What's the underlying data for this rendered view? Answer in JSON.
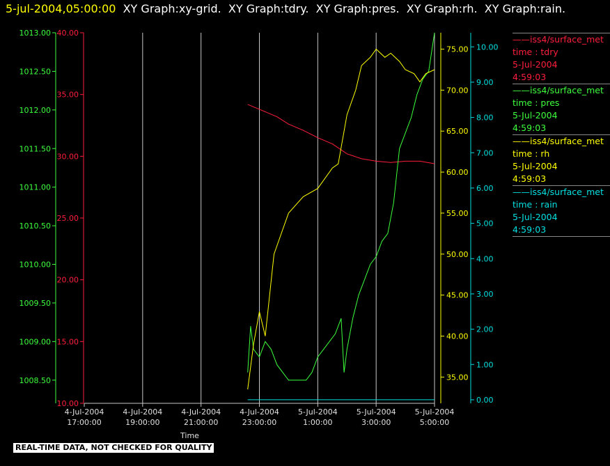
{
  "header": {
    "timestamp": "5-jul-2004,05:00:00",
    "graphs": [
      "XY Graph:xy-grid.",
      "XY Graph:tdry.",
      "XY Graph:pres.",
      "XY Graph:rh.",
      "XY Graph:rain."
    ]
  },
  "legend": [
    {
      "source": "iss4/surface_met",
      "field": "time : tdry",
      "date": "5-Jul-2004",
      "time": "4:59:03",
      "color": "#ff1e3c"
    },
    {
      "source": "iss4/surface_met",
      "field": "time : pres",
      "date": "5-Jul-2004",
      "time": "4:59:03",
      "color": "#3cff3c"
    },
    {
      "source": "iss4/surface_met",
      "field": "time : rh",
      "date": "5-Jul-2004",
      "time": "4:59:03",
      "color": "#ffff00"
    },
    {
      "source": "iss4/surface_met",
      "field": "time : rain",
      "date": "5-Jul-2004",
      "time": "4:59:03",
      "color": "#00e0e0"
    }
  ],
  "disclaimer": "REAL-TIME DATA, NOT CHECKED FOR QUALITY",
  "chart_data": {
    "type": "line",
    "xlabel": "Time",
    "x_ticks": [
      [
        "4-Jul-2004",
        "17:00:00"
      ],
      [
        "4-Jul-2004",
        "19:00:00"
      ],
      [
        "4-Jul-2004",
        "21:00:00"
      ],
      [
        "4-Jul-2004",
        "23:00:00"
      ],
      [
        "5-Jul-2004",
        "1:00:00"
      ],
      [
        "5-Jul-2004",
        "3:00:00"
      ],
      [
        "5-Jul-2004",
        "5:00:00"
      ]
    ],
    "x_range_hours": [
      17.0,
      29.0
    ],
    "grid": "vertical lines at x ticks",
    "axes": [
      {
        "name": "pres",
        "color": "#3cff3c",
        "ylim": [
          1008.2,
          1013.0
        ],
        "ticks": [
          "1008.50",
          "1009.00",
          "1009.50",
          "1010.00",
          "1010.50",
          "1011.00",
          "1011.50",
          "1012.00",
          "1012.50",
          "1013.00"
        ]
      },
      {
        "name": "tdry",
        "color": "#ff1e3c",
        "ylim": [
          10.0,
          40.0
        ],
        "ticks": [
          "10.00",
          "15.00",
          "20.00",
          "25.00",
          "30.00",
          "35.00",
          "40.00"
        ]
      },
      {
        "name": "rh",
        "color": "#ffff00",
        "ylim": [
          31.8,
          77.0
        ],
        "ticks": [
          "35.00",
          "40.00",
          "45.00",
          "50.00",
          "55.00",
          "60.00",
          "65.00",
          "70.00",
          "75.00"
        ]
      },
      {
        "name": "rain",
        "color": "#00e0e0",
        "ylim": [
          -0.1,
          10.4
        ],
        "ticks": [
          "0.00",
          "1.00",
          "2.00",
          "3.00",
          "4.00",
          "5.00",
          "6.00",
          "7.00",
          "8.00",
          "9.00",
          "10.00"
        ]
      }
    ],
    "series": [
      {
        "name": "tdry",
        "axis": "tdry",
        "color": "#ff1e3c",
        "x": [
          22.6,
          23.0,
          23.6,
          24.0,
          24.5,
          25.0,
          25.5,
          26.0,
          26.5,
          27.0,
          27.5,
          28.0,
          28.5,
          29.0
        ],
        "y": [
          34.2,
          33.8,
          33.2,
          32.6,
          32.1,
          31.5,
          31.0,
          30.2,
          29.8,
          29.6,
          29.5,
          29.6,
          29.6,
          29.4
        ]
      },
      {
        "name": "pres",
        "axis": "pres",
        "color": "#3cff3c",
        "x": [
          22.6,
          22.7,
          22.8,
          23.0,
          23.2,
          23.4,
          23.6,
          23.8,
          24.0,
          24.2,
          24.4,
          24.6,
          24.8,
          25.0,
          25.2,
          25.4,
          25.6,
          25.8,
          25.9,
          26.0,
          26.2,
          26.4,
          26.6,
          26.8,
          27.0,
          27.2,
          27.4,
          27.6,
          27.8,
          28.0,
          28.2,
          28.4,
          28.6,
          28.8,
          29.0
        ],
        "y": [
          1008.6,
          1009.2,
          1008.9,
          1008.8,
          1009.0,
          1008.9,
          1008.7,
          1008.6,
          1008.5,
          1008.5,
          1008.5,
          1008.5,
          1008.6,
          1008.8,
          1008.9,
          1009.0,
          1009.1,
          1009.3,
          1008.6,
          1008.9,
          1009.3,
          1009.6,
          1009.8,
          1010.0,
          1010.1,
          1010.3,
          1010.4,
          1010.8,
          1011.5,
          1011.7,
          1011.9,
          1012.2,
          1012.4,
          1012.5,
          1013.0
        ]
      },
      {
        "name": "rh",
        "axis": "rh",
        "color": "#ffff00",
        "x": [
          22.6,
          22.8,
          23.0,
          23.2,
          23.5,
          23.8,
          24.0,
          24.5,
          25.0,
          25.5,
          25.7,
          26.0,
          26.3,
          26.5,
          26.8,
          27.0,
          27.3,
          27.5,
          27.8,
          28.0,
          28.3,
          28.5,
          28.7,
          29.0
        ],
        "y": [
          33.5,
          39.0,
          43.0,
          40.0,
          50.0,
          53.0,
          55.0,
          57.0,
          58.0,
          60.5,
          61.0,
          67.0,
          70.0,
          73.0,
          74.0,
          75.0,
          74.0,
          74.5,
          73.5,
          72.5,
          72.0,
          71.0,
          72.0,
          72.5
        ]
      },
      {
        "name": "rain",
        "axis": "rain",
        "color": "#00e0e0",
        "x": [
          22.6,
          29.0
        ],
        "y": [
          0.0,
          0.0
        ]
      }
    ]
  }
}
